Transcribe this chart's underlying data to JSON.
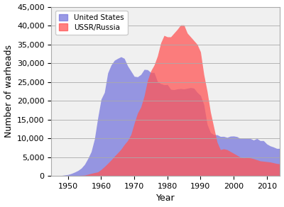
{
  "title": "",
  "xlabel": "Year",
  "ylabel": "Number of warheads",
  "us_data": {
    "years": [
      1945,
      1946,
      1947,
      1948,
      1949,
      1950,
      1951,
      1952,
      1953,
      1954,
      1955,
      1956,
      1957,
      1958,
      1959,
      1960,
      1961,
      1962,
      1963,
      1964,
      1965,
      1966,
      1967,
      1968,
      1969,
      1970,
      1971,
      1972,
      1973,
      1974,
      1975,
      1976,
      1977,
      1978,
      1979,
      1980,
      1981,
      1982,
      1983,
      1984,
      1985,
      1986,
      1987,
      1988,
      1989,
      1990,
      1991,
      1992,
      1993,
      1994,
      1995,
      1996,
      1997,
      1998,
      1999,
      2000,
      2001,
      2002,
      2003,
      2004,
      2005,
      2006,
      2007,
      2008,
      2009,
      2010,
      2011,
      2012,
      2013,
      2014
    ],
    "values": [
      6,
      11,
      32,
      110,
      235,
      369,
      640,
      1005,
      1436,
      2063,
      3057,
      4618,
      6444,
      9822,
      15468,
      20434,
      22229,
      27387,
      29480,
      30751,
      31265,
      31700,
      31255,
      29280,
      27894,
      26494,
      26365,
      27000,
      28335,
      28258,
      27519,
      27519,
      25099,
      24539,
      24244,
      24304,
      23031,
      22937,
      23154,
      23228,
      23135,
      23317,
      23490,
      23335,
      22217,
      21392,
      19008,
      13731,
      11536,
      10979,
      10953,
      10500,
      10522,
      10252,
      10577,
      10615,
      10455,
      9938,
      9938,
      9960,
      9962,
      9552,
      9960,
      9400,
      9400,
      8500,
      8000,
      7700,
      7315,
      7315
    ]
  },
  "ussr_data": {
    "years": [
      1949,
      1950,
      1951,
      1952,
      1953,
      1954,
      1955,
      1956,
      1957,
      1958,
      1959,
      1960,
      1961,
      1962,
      1963,
      1964,
      1965,
      1966,
      1967,
      1968,
      1969,
      1970,
      1971,
      1972,
      1973,
      1974,
      1975,
      1976,
      1977,
      1978,
      1979,
      1980,
      1981,
      1982,
      1983,
      1984,
      1985,
      1986,
      1987,
      1988,
      1989,
      1990,
      1991,
      1992,
      1993,
      1994,
      1995,
      1996,
      1997,
      1998,
      1999,
      2000,
      2001,
      2002,
      2003,
      2004,
      2005,
      2006,
      2007,
      2008,
      2009,
      2010,
      2011,
      2012,
      2013,
      2014
    ],
    "values": [
      1,
      5,
      25,
      50,
      120,
      150,
      200,
      426,
      660,
      869,
      1060,
      1700,
      2471,
      3322,
      4238,
      5221,
      6129,
      7089,
      8339,
      9399,
      11000,
      14018,
      16714,
      18347,
      21284,
      25393,
      27935,
      29500,
      31900,
      35393,
      37372,
      37000,
      37000,
      38000,
      39000,
      40159,
      40159,
      38000,
      37000,
      36000,
      35000,
      33000,
      27000,
      22500,
      17000,
      13000,
      9000,
      7000,
      7200,
      7000,
      6500,
      6000,
      5500,
      5000,
      4800,
      4900,
      4800,
      4600,
      4300,
      4000,
      3900,
      3800,
      3700,
      3500,
      3300,
      3200
    ]
  },
  "us_color": "#7777dd",
  "ussr_color": "#ff5555",
  "us_alpha": 0.75,
  "ussr_alpha": 0.75,
  "ylim": [
    0,
    45000
  ],
  "xlim": [
    1945,
    2014
  ],
  "yticks": [
    0,
    5000,
    10000,
    15000,
    20000,
    25000,
    30000,
    35000,
    40000,
    45000
  ],
  "xticks": [
    1950,
    1960,
    1970,
    1980,
    1990,
    2000,
    2010
  ],
  "grid_color": "#aaaaaa",
  "bg_color": "#ffffff",
  "plot_bg_color": "#f0f0f0",
  "legend_labels": [
    "United States",
    "USSR/Russia"
  ],
  "legend_colors": [
    "#7777dd",
    "#ff5555"
  ],
  "tick_fontsize": 8,
  "label_fontsize": 9
}
